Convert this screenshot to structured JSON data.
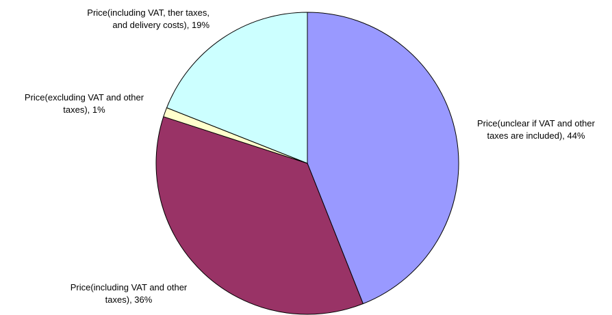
{
  "chart_data": {
    "type": "pie",
    "title": "",
    "start_angle_deg": 0,
    "direction": "clockwise",
    "slices": [
      {
        "label_lines": [
          "Price(unclear if VAT and other",
          "taxes are included), 44%"
        ],
        "value": 44,
        "color": "#9999ff"
      },
      {
        "label_lines": [
          "Price(including VAT and other",
          "taxes), 36%"
        ],
        "value": 36,
        "color": "#993366"
      },
      {
        "label_lines": [
          "Price(excluding VAT and other",
          "taxes), 1%"
        ],
        "value": 1,
        "color": "#ffffcc"
      },
      {
        "label_lines": [
          "Price(including VAT, ther taxes,",
          "and delivery costs), 19%"
        ],
        "value": 19,
        "color": "#ccffff"
      }
    ]
  }
}
